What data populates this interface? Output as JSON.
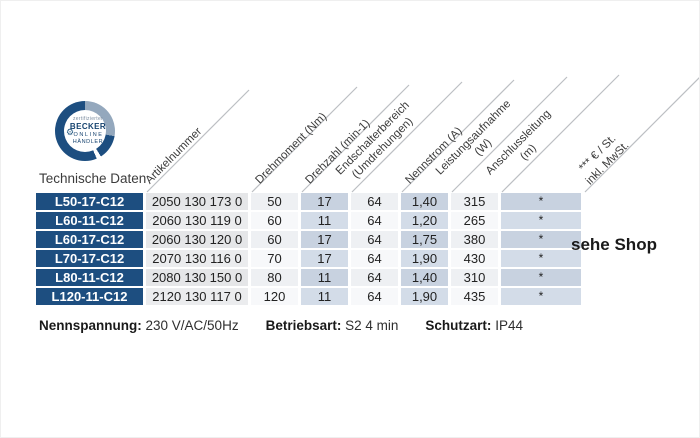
{
  "badge": {
    "prefix": "zertifizierter",
    "brand": "BECKER",
    "line2": "ONLINE",
    "line3": "HÄNDLER",
    "gear_icon": "⚙"
  },
  "caption": "Technische Daten",
  "table": {
    "headers": [
      "Artikelnummer",
      "Drehmoment (Nm)",
      "Drehzahl (min-1)",
      "Endschalterbereich\n(Umdrehungen)",
      "Nennstrom (A)",
      "Leistungsaufnahme\n(W)",
      "Anschlussleitung\n(m)",
      "*** € / St.\ninkl. MwSt."
    ],
    "rows": [
      {
        "model": "L50-17-C12",
        "artikelnummer": "2050 130 173 0",
        "drehmoment": "50",
        "drehzahl": "17",
        "endschalterbereich": "64",
        "nennstrom": "1,40",
        "leistungsaufnahme": "315",
        "anschlussleitung": "*"
      },
      {
        "model": "L60-11-C12",
        "artikelnummer": "2060 130 119 0",
        "drehmoment": "60",
        "drehzahl": "11",
        "endschalterbereich": "64",
        "nennstrom": "1,20",
        "leistungsaufnahme": "265",
        "anschlussleitung": "*"
      },
      {
        "model": "L60-17-C12",
        "artikelnummer": "2060 130 120 0",
        "drehmoment": "60",
        "drehzahl": "17",
        "endschalterbereich": "64",
        "nennstrom": "1,75",
        "leistungsaufnahme": "380",
        "anschlussleitung": "*"
      },
      {
        "model": "L70-17-C12",
        "artikelnummer": "2070 130 116 0",
        "drehmoment": "70",
        "drehzahl": "17",
        "endschalterbereich": "64",
        "nennstrom": "1,90",
        "leistungsaufnahme": "430",
        "anschlussleitung": "*"
      },
      {
        "model": "L80-11-C12",
        "artikelnummer": "2080 130 150 0",
        "drehmoment": "80",
        "drehzahl": "11",
        "endschalterbereich": "64",
        "nennstrom": "1,40",
        "leistungsaufnahme": "310",
        "anschlussleitung": "*"
      },
      {
        "model": "L120-11-C12",
        "artikelnummer": "2120 130 117 0",
        "drehmoment": "120",
        "drehzahl": "11",
        "endschalterbereich": "64",
        "nennstrom": "1,90",
        "leistungsaufnahme": "435",
        "anschlussleitung": "*"
      }
    ],
    "price_note": "sehe Shop"
  },
  "specs": [
    {
      "label": "Nennspannung:",
      "value": "230 V/AC/50Hz"
    },
    {
      "label": "Betriebsart:",
      "value": "S2 4 min"
    },
    {
      "label": "Schutzart:",
      "value": "IP44"
    }
  ],
  "colors": {
    "navy": "#1d4e80",
    "gray_column": "#e5e6e8",
    "light_column": "#eef0f3",
    "blue_column": "#c8d2e0",
    "diagonal_line": "#bcbfc3"
  }
}
